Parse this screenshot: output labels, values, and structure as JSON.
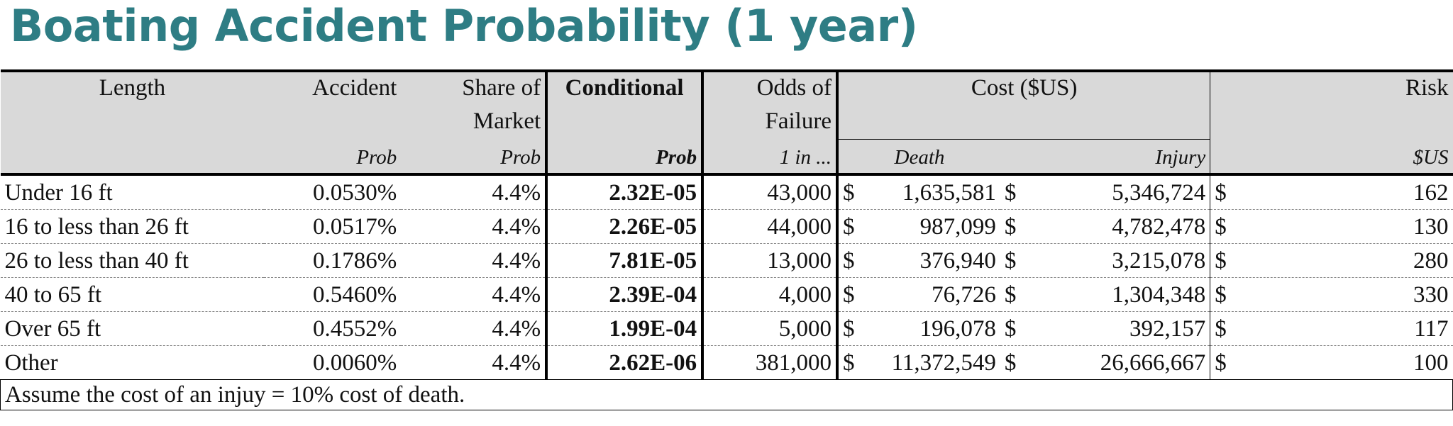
{
  "title": "Boating Accident Probability (1 year)",
  "header": {
    "length": "Length",
    "accident": "Accident",
    "share_line1": "Share of",
    "share_line2": "Market",
    "conditional": "Conditional",
    "odds_line1": "Odds of",
    "odds_line2": "Failure",
    "cost": "Cost ($US)",
    "risk": "Risk",
    "sub_accident": "Prob",
    "sub_share": "Prob",
    "sub_conditional": "Prob",
    "sub_odds": "1 in ...",
    "sub_death": "Death",
    "sub_injury": "Injury",
    "sub_risk": "$US"
  },
  "currency_symbol": "$",
  "rows": [
    {
      "length": "Under 16 ft",
      "accident": "0.0530%",
      "share": "4.4%",
      "conditional": "2.32E-05",
      "odds": "43,000",
      "death": "1,635,581",
      "injury": "5,346,724",
      "risk": "162"
    },
    {
      "length": "16 to less than 26 ft",
      "accident": "0.0517%",
      "share": "4.4%",
      "conditional": "2.26E-05",
      "odds": "44,000",
      "death": "987,099",
      "injury": "4,782,478",
      "risk": "130"
    },
    {
      "length": "26 to less than 40 ft",
      "accident": "0.1786%",
      "share": "4.4%",
      "conditional": "7.81E-05",
      "odds": "13,000",
      "death": "376,940",
      "injury": "3,215,078",
      "risk": "280"
    },
    {
      "length": "40 to 65 ft",
      "accident": "0.5460%",
      "share": "4.4%",
      "conditional": "2.39E-04",
      "odds": "4,000",
      "death": "76,726",
      "injury": "1,304,348",
      "risk": "330"
    },
    {
      "length": "Over 65 ft",
      "accident": "0.4552%",
      "share": "4.4%",
      "conditional": "1.99E-04",
      "odds": "5,000",
      "death": "196,078",
      "injury": "392,157",
      "risk": "117"
    },
    {
      "length": "Other",
      "accident": "0.0060%",
      "share": "4.4%",
      "conditional": "2.62E-06",
      "odds": "381,000",
      "death": "11,372,549",
      "injury": "26,666,667",
      "risk": "100"
    }
  ],
  "note": "Assume the cost of an injuy = 10% cost of death."
}
